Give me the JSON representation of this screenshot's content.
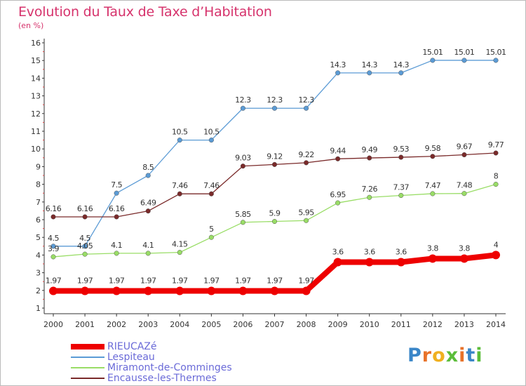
{
  "chart_data": {
    "type": "line",
    "title": "Evolution du Taux de Taxe d’Habitation",
    "subtitle": "(en %)",
    "xlabel": "",
    "ylabel": "",
    "x": [
      "2000",
      "2001",
      "2002",
      "2003",
      "2004",
      "2005",
      "2006",
      "2007",
      "2008",
      "2009",
      "2010",
      "2011",
      "2012",
      "2013",
      "2014"
    ],
    "ylim": [
      1,
      16
    ],
    "yticks": [
      "1",
      "2",
      "3",
      "4",
      "5",
      "6",
      "7",
      "8",
      "9",
      "10",
      "11",
      "12",
      "13",
      "14",
      "15",
      "16"
    ],
    "grid": false,
    "legend": "bottom-left",
    "series": [
      {
        "name": "RIEUCAZé",
        "color": "#ee0000",
        "values": [
          1.97,
          1.97,
          1.97,
          1.97,
          1.97,
          1.97,
          1.97,
          1.97,
          1.97,
          3.6,
          3.6,
          3.6,
          3.8,
          3.8,
          4
        ],
        "labels": [
          "1.97",
          "1.97",
          "1.97",
          "1.97",
          "1.97",
          "1.97",
          "1.97",
          "1.97",
          "1.97",
          "3.6",
          "3.6",
          "3.6",
          "3.8",
          "3.8",
          "4"
        ]
      },
      {
        "name": "Lespiteau",
        "color": "#5b9bd5",
        "values": [
          4.5,
          4.5,
          7.5,
          8.5,
          10.5,
          10.5,
          12.3,
          12.3,
          12.3,
          14.3,
          14.3,
          14.3,
          15.01,
          15.01,
          15.01
        ],
        "labels": [
          "4.5",
          "4.5",
          "7.5",
          "8.5",
          "10.5",
          "10.5",
          "12.3",
          "12.3",
          "12.3",
          "14.3",
          "14.3",
          "14.3",
          "15.01",
          "15.01",
          "15.01"
        ]
      },
      {
        "name": "Miramont-de-Comminges",
        "color": "#99dd66",
        "values": [
          3.9,
          4.05,
          4.1,
          4.1,
          4.15,
          5,
          5.85,
          5.9,
          5.95,
          6.95,
          7.26,
          7.37,
          7.47,
          7.48,
          8
        ],
        "labels": [
          "3.9",
          "4.05",
          "4.1",
          "4.1",
          "4.15",
          "5",
          "5.85",
          "5.9",
          "5.95",
          "6.95",
          "7.26",
          "7.37",
          "7.47",
          "7.48",
          "8"
        ]
      },
      {
        "name": "Encausse-les-Thermes",
        "color": "#7a2a2a",
        "values": [
          6.16,
          6.16,
          6.16,
          6.49,
          7.46,
          7.46,
          9.03,
          9.12,
          9.22,
          9.44,
          9.49,
          9.53,
          9.58,
          9.67,
          9.77
        ],
        "labels": [
          "6.16",
          "6.16",
          "6.16",
          "6.49",
          "7.46",
          "7.46",
          "9.03",
          "9.12",
          "9.22",
          "9.44",
          "9.49",
          "9.53",
          "9.58",
          "9.67",
          "9.77"
        ]
      }
    ]
  },
  "brand": {
    "letters": [
      "P",
      "r",
      "o",
      "x",
      "i",
      "t",
      "i"
    ],
    "colors": [
      "#3a86c8",
      "#e8722a",
      "#f0b020",
      "#5bbd3a",
      "#e8722a",
      "#3a86c8",
      "#5bbd3a"
    ]
  }
}
